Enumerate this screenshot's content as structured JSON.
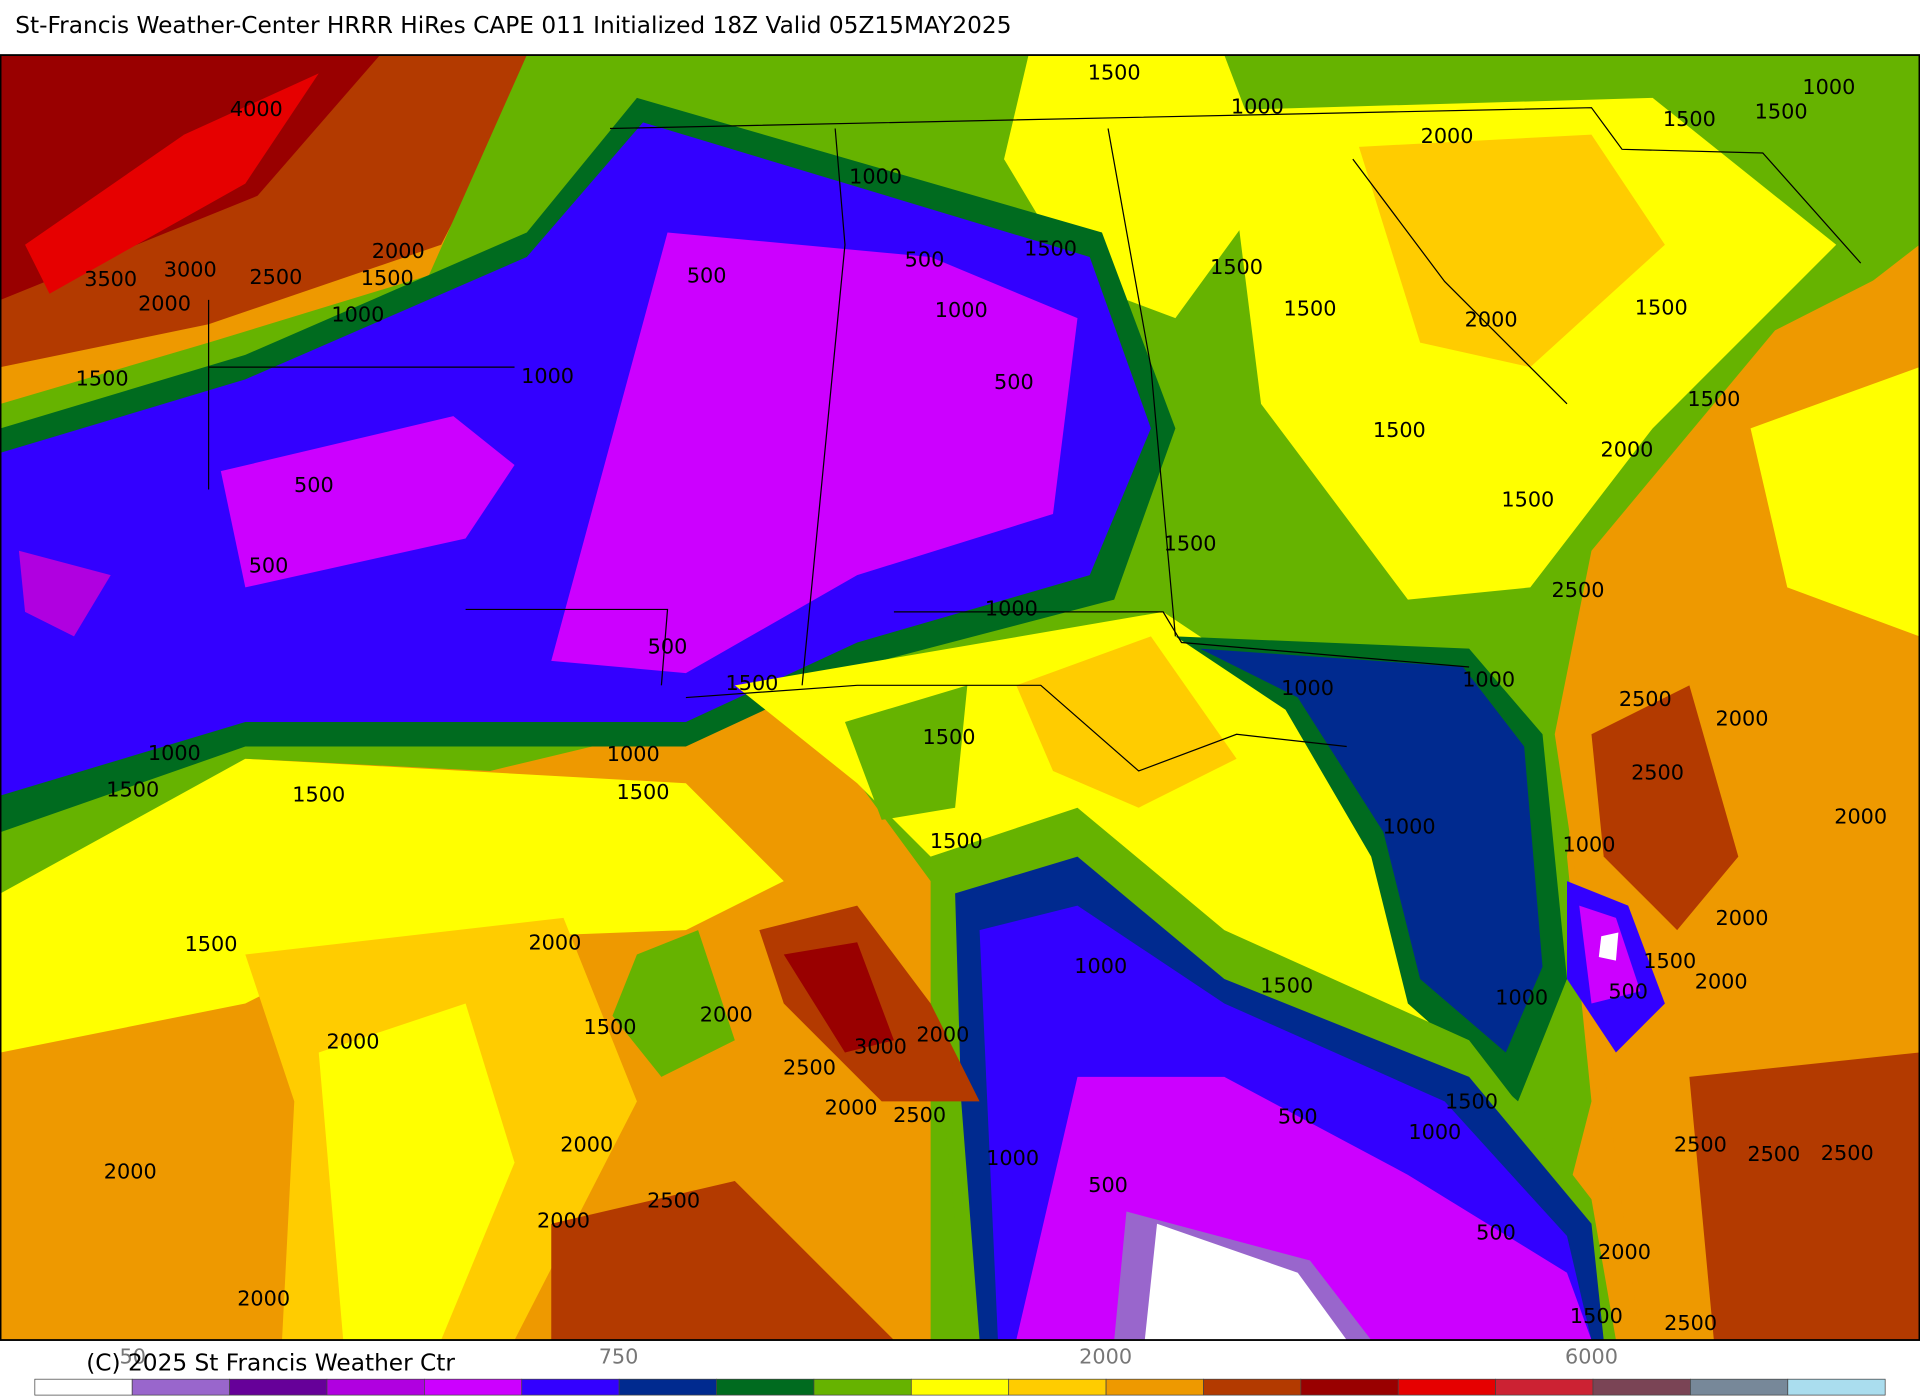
{
  "header": {
    "title": "St-Francis Weather-Center HRRR HiRes CAPE  011 Initialized  18Z Valid 05Z15MAY2025"
  },
  "contour_labels": [
    "1500",
    "1000",
    "1000",
    "1500",
    "1500",
    "2000",
    "4000",
    "1000",
    "500",
    "1500",
    "1500",
    "2000",
    "1500",
    "3000",
    "3500",
    "2500",
    "2000",
    "1000",
    "500",
    "1000",
    "1500",
    "2000",
    "1500",
    "1000",
    "500",
    "1500",
    "1500",
    "1500",
    "2000",
    "500",
    "1500",
    "1500",
    "500",
    "2500",
    "1000",
    "500",
    "1500",
    "1000",
    "1000",
    "2500",
    "2000",
    "1000",
    "1000",
    "1500",
    "1500",
    "1500",
    "1500",
    "2500",
    "2000",
    "1000",
    "1500",
    "1000",
    "1500",
    "2000",
    "2000",
    "1000",
    "1500",
    "1500",
    "2000",
    "500",
    "1000",
    "1500",
    "2000",
    "2000",
    "3000",
    "2000",
    "2500",
    "2000",
    "2500",
    "1500",
    "500",
    "1000",
    "2500",
    "2500",
    "2500",
    "2000",
    "1000",
    "500",
    "2000",
    "2000",
    "2500",
    "500",
    "2000",
    "2000",
    "1500",
    "2500"
  ],
  "colorbar": {
    "colors": [
      "#ffffff",
      "#9966cc",
      "#660099",
      "#b000e0",
      "#cc00ff",
      "#3300ff",
      "#002a8f",
      "#006b1f",
      "#66b300",
      "#ffff00",
      "#ffcc00",
      "#ee9900",
      "#b33a00",
      "#990000",
      "#e60000",
      "#cc2233",
      "#7a4455",
      "#778899",
      "#aaddee"
    ],
    "labels": [
      "50",
      "750",
      "2000",
      "6000"
    ]
  },
  "footer": {
    "copyright": "(C) 2025 St Francis Weather Ctr"
  }
}
